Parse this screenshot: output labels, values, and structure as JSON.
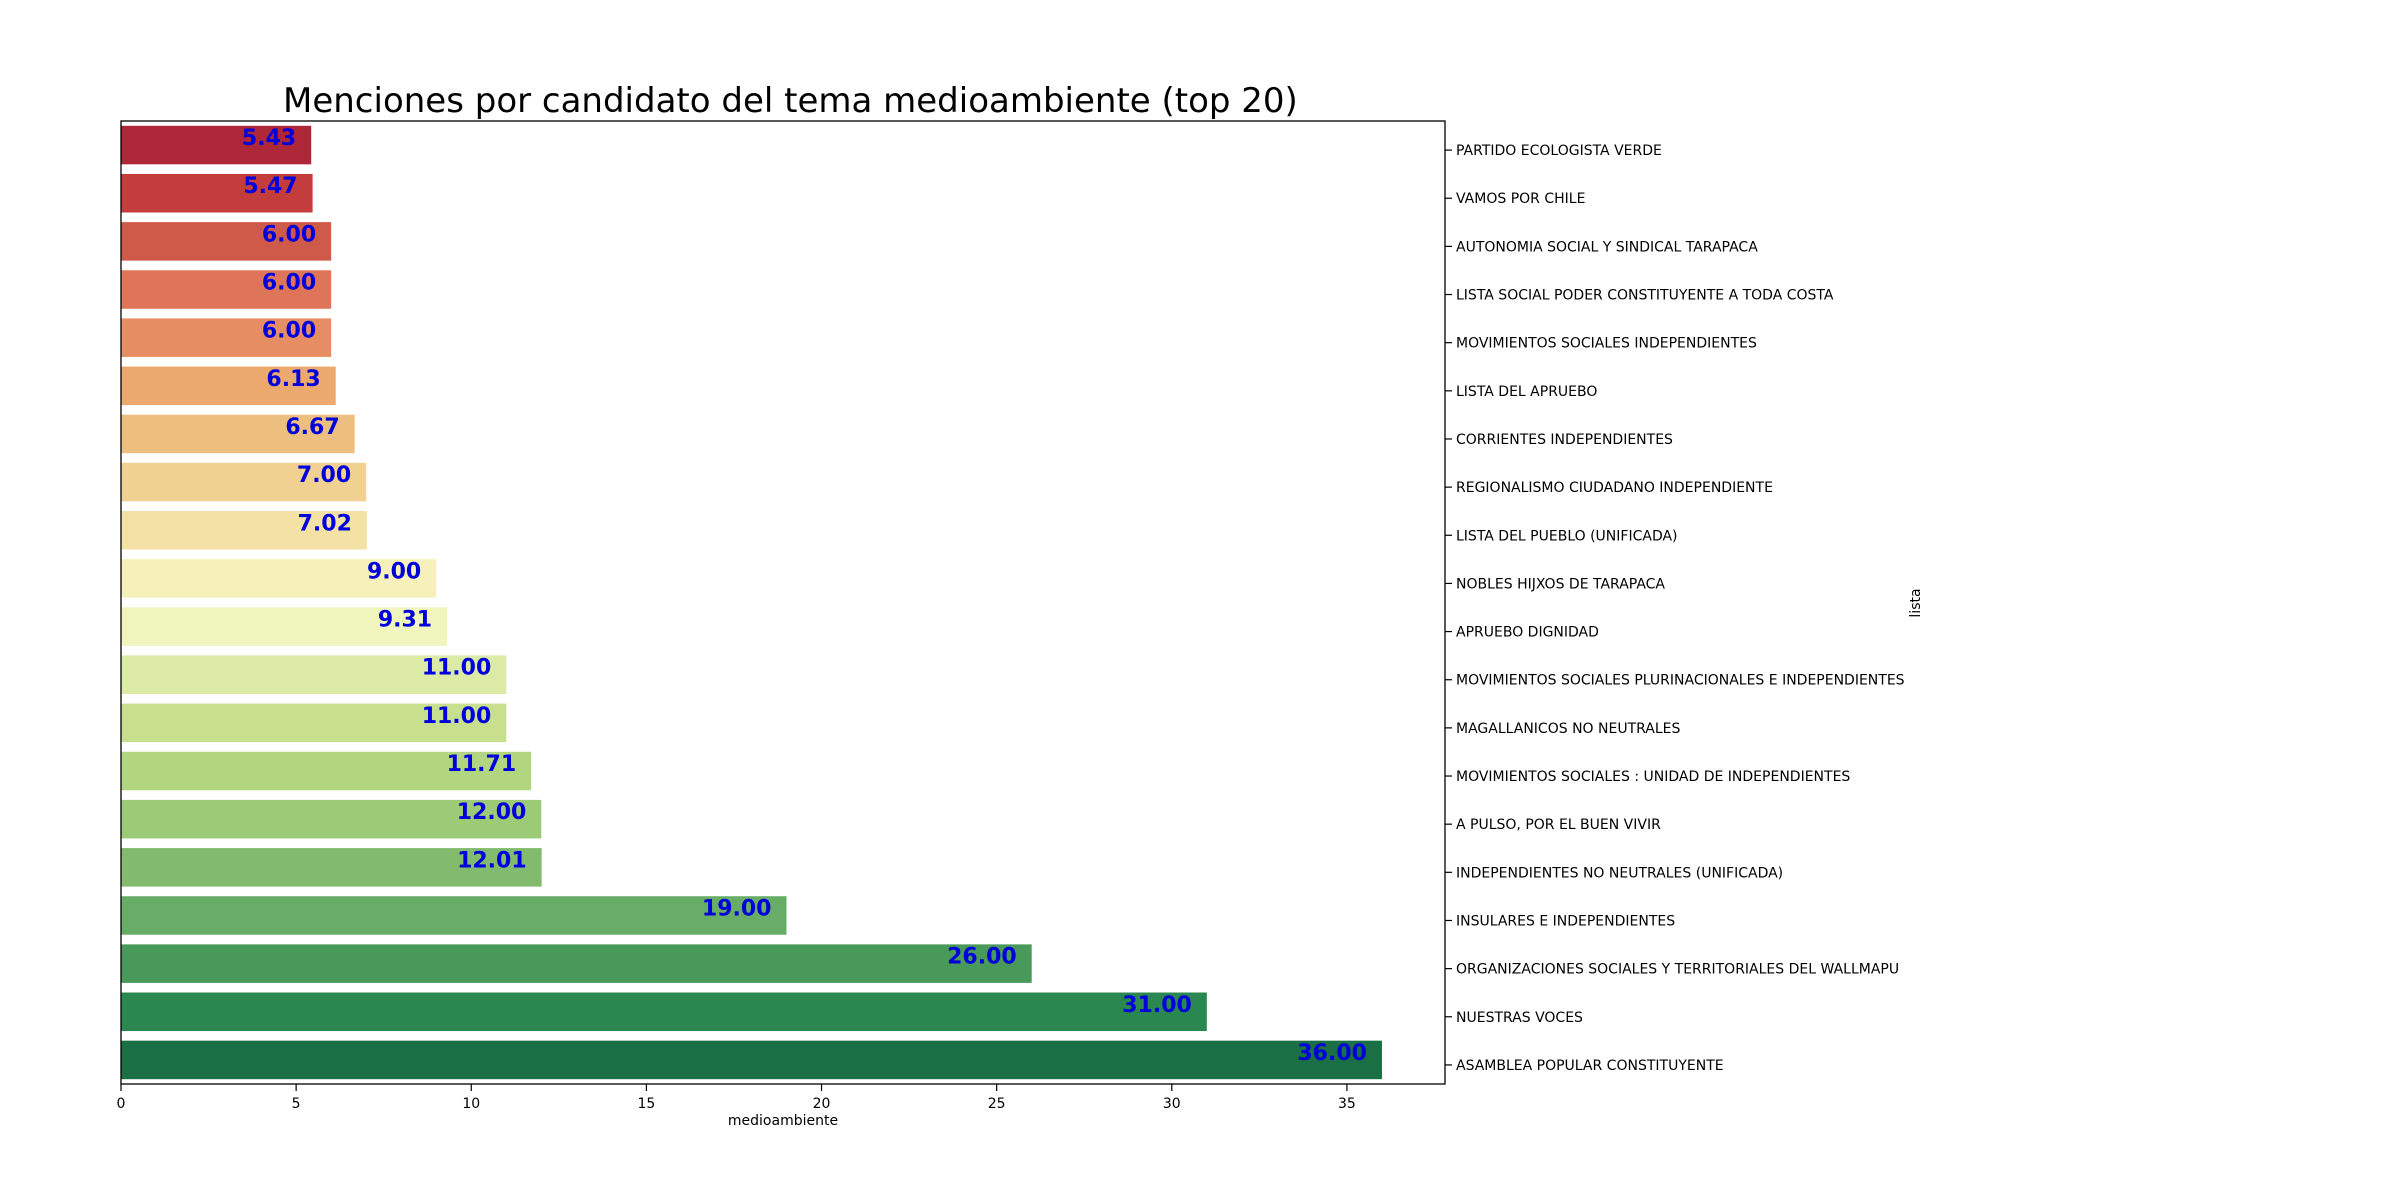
{
  "chart_data": {
    "type": "bar",
    "orientation": "horizontal",
    "title": "Menciones por candidato del tema medioambiente (top 20)",
    "xlabel": "medioambiente",
    "ylabel": "lista",
    "xlim": [
      0,
      37.8
    ],
    "xticks": [
      0,
      5,
      10,
      15,
      20,
      25,
      30,
      35
    ],
    "ytick_position": "right",
    "grid": false,
    "legend": "none",
    "data_label_color": "#0000dd",
    "categories": [
      "PARTIDO ECOLOGISTA VERDE",
      "VAMOS POR CHILE",
      "AUTONOMIA SOCIAL Y SINDICAL TARAPACA",
      "LISTA SOCIAL PODER CONSTITUYENTE A TODA COSTA",
      "MOVIMIENTOS SOCIALES INDEPENDIENTES",
      "LISTA DEL APRUEBO",
      "CORRIENTES INDEPENDIENTES",
      "REGIONALISMO CIUDADANO INDEPENDIENTE",
      "LISTA DEL PUEBLO (UNIFICADA)",
      "NOBLES HIJXOS DE TARAPACA",
      "APRUEBO DIGNIDAD",
      "MOVIMIENTOS SOCIALES PLURINACIONALES E INDEPENDIENTES",
      "MAGALLANICOS NO NEUTRALES",
      "MOVIMIENTOS SOCIALES : UNIDAD DE INDEPENDIENTES",
      "A PULSO, POR EL BUEN VIVIR",
      "INDEPENDIENTES NO NEUTRALES (UNIFICADA)",
      "INSULARES E INDEPENDIENTES",
      "ORGANIZACIONES SOCIALES Y TERRITORIALES DEL WALLMAPU",
      "NUESTRAS VOCES",
      "ASAMBLEA POPULAR CONSTITUYENTE"
    ],
    "values": [
      5.43,
      5.47,
      6.0,
      6.0,
      6.0,
      6.13,
      6.67,
      7.0,
      7.02,
      9.0,
      9.31,
      11.0,
      11.0,
      11.71,
      12.0,
      12.01,
      19.0,
      26.0,
      31.0,
      36.0
    ],
    "value_labels": [
      "5.43",
      "5.47",
      "6.00",
      "6.00",
      "6.00",
      "6.13",
      "6.67",
      "7.00",
      "7.02",
      "9.00",
      "9.31",
      "11.00",
      "11.00",
      "11.71",
      "12.00",
      "12.01",
      "19.00",
      "26.00",
      "31.00",
      "36.00"
    ],
    "colors": [
      "#ae2738",
      "#c43c3c",
      "#d05a4a",
      "#df7558",
      "#e68d63",
      "#eba96d",
      "#edbf7e",
      "#f0d191",
      "#f4e1a6",
      "#f6f0ba",
      "#eff5bd",
      "#dbeaa4",
      "#c8e08d",
      "#b2d67f",
      "#9bcb77",
      "#82bb6e",
      "#67ac67",
      "#49995b",
      "#2a874f",
      "#1a6f44"
    ]
  }
}
